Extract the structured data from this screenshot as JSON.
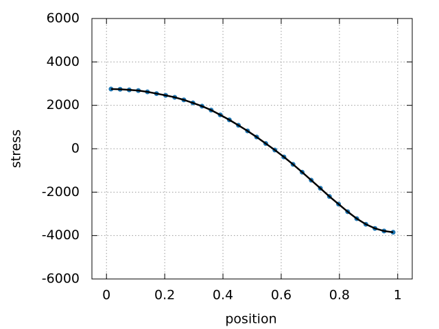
{
  "chart_data": {
    "type": "line",
    "x_label": "position",
    "y_label": "stress",
    "x": [
      0.015625,
      0.046875,
      0.078125,
      0.109375,
      0.140625,
      0.171875,
      0.203125,
      0.234375,
      0.265625,
      0.296875,
      0.328125,
      0.359375,
      0.390625,
      0.421875,
      0.453125,
      0.484375,
      0.515625,
      0.546875,
      0.578125,
      0.609375,
      0.640625,
      0.671875,
      0.703125,
      0.734375,
      0.765625,
      0.796875,
      0.828125,
      0.859375,
      0.890625,
      0.921875,
      0.953125,
      0.984375
    ],
    "values": [
      2750,
      2740,
      2710,
      2680,
      2620,
      2540,
      2460,
      2370,
      2250,
      2110,
      1960,
      1780,
      1560,
      1330,
      1080,
      820,
      540,
      240,
      -60,
      -380,
      -720,
      -1080,
      -1450,
      -1820,
      -2200,
      -2550,
      -2900,
      -3220,
      -3480,
      -3670,
      -3790,
      -3850
    ],
    "color": "#000000",
    "marker_color": "#1f77b4",
    "xlim": [
      -0.05,
      1.05
    ],
    "xticks": [
      0,
      0.2,
      0.4,
      0.6,
      0.8,
      1
    ],
    "ylim": [
      -6000,
      6000
    ],
    "yticks": [
      -6000,
      -4000,
      -2000,
      0,
      2000,
      4000,
      6000
    ],
    "grid": true
  }
}
